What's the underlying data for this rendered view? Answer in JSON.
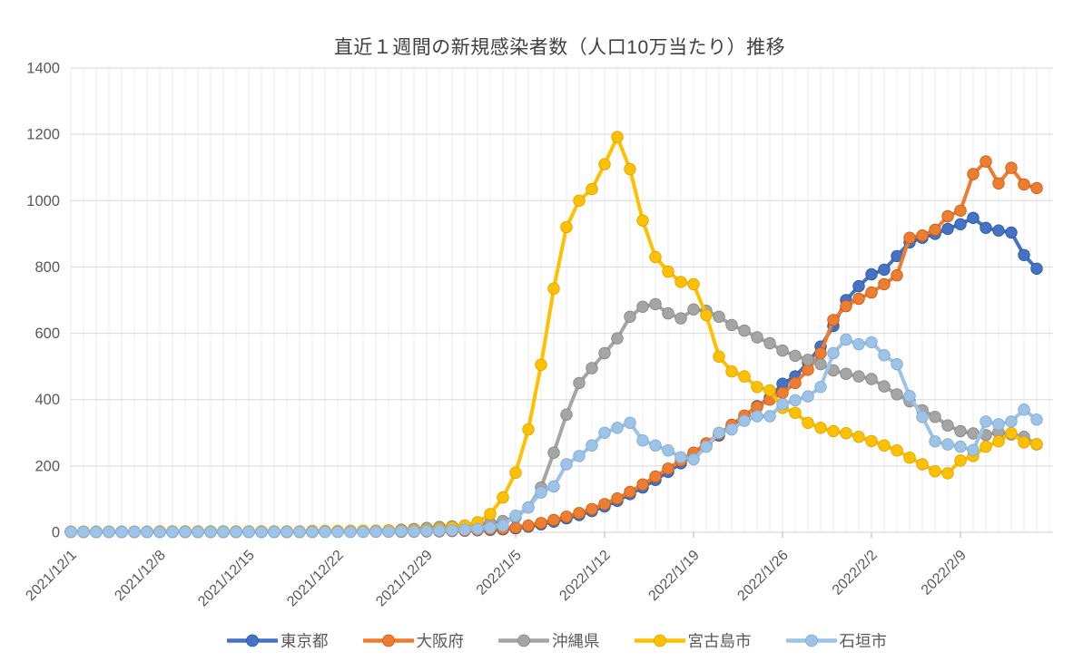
{
  "chart_data": {
    "type": "line",
    "title": "直近１週間の新規感染者数（人口10万当たり）推移",
    "legend_position": "bottom",
    "grid": "daily-vertical-and-horizontal",
    "ylim": [
      0,
      1400
    ],
    "y_ticks": [
      0,
      200,
      400,
      600,
      800,
      1000,
      1200,
      1400
    ],
    "x_start_date": "2021/12/1",
    "x_end_date": "2022/2/15",
    "n_points": 77,
    "x_tick_labels": [
      "2021/12/1",
      "2021/12/8",
      "2021/12/15",
      "2021/12/22",
      "2021/12/29",
      "2022/1/5",
      "2022/1/12",
      "2022/1/19",
      "2022/1/26",
      "2022/2/2",
      "2022/2/9"
    ],
    "x_tick_day_index": [
      0,
      7,
      14,
      21,
      28,
      35,
      42,
      49,
      56,
      63,
      70
    ],
    "series": [
      {
        "id": "tokyo",
        "name": "東京都",
        "color": "#4472C4",
        "marker_stroke": "#2F5597",
        "values": [
          1,
          1,
          1,
          1,
          1,
          1,
          1,
          1,
          1,
          1,
          1,
          1,
          1,
          1,
          1,
          1,
          1,
          1,
          1,
          2,
          2,
          2,
          2,
          2,
          2,
          2,
          2,
          3,
          3,
          3,
          4,
          5,
          6,
          7,
          9,
          12,
          17,
          24,
          32,
          42,
          52,
          64,
          78,
          95,
          115,
          135,
          158,
          182,
          208,
          235,
          263,
          292,
          320,
          350,
          380,
          405,
          448,
          470,
          512,
          560,
          622,
          700,
          742,
          778,
          792,
          833,
          874,
          888,
          900,
          915,
          929,
          948,
          918,
          910,
          904,
          836,
          795
        ]
      },
      {
        "id": "osaka",
        "name": "大阪府",
        "color": "#ED7D31",
        "marker_stroke": "#C55A11",
        "values": [
          1,
          1,
          1,
          1,
          1,
          1,
          1,
          1,
          1,
          1,
          1,
          1,
          1,
          1,
          1,
          1,
          1,
          1,
          1,
          1,
          2,
          2,
          2,
          2,
          2,
          2,
          2,
          2,
          3,
          3,
          4,
          5,
          7,
          9,
          11,
          14,
          20,
          28,
          37,
          47,
          58,
          70,
          85,
          102,
          122,
          144,
          168,
          192,
          216,
          240,
          268,
          296,
          324,
          352,
          378,
          400,
          420,
          450,
          490,
          540,
          640,
          682,
          704,
          723,
          748,
          775,
          888,
          895,
          912,
          953,
          970,
          1080,
          1118,
          1052,
          1099,
          1049,
          1038
        ]
      },
      {
        "id": "okinawa",
        "name": "沖縄県",
        "color": "#A5A5A5",
        "marker_stroke": "#848484",
        "values": [
          2,
          2,
          2,
          2,
          2,
          2,
          2,
          2,
          2,
          2,
          2,
          2,
          2,
          2,
          2,
          2,
          2,
          2,
          2,
          2,
          2,
          3,
          3,
          4,
          5,
          6,
          8,
          10,
          13,
          16,
          18,
          20,
          24,
          28,
          34,
          45,
          75,
          135,
          240,
          355,
          450,
          495,
          540,
          585,
          650,
          680,
          688,
          660,
          645,
          672,
          668,
          650,
          625,
          608,
          588,
          570,
          548,
          532,
          520,
          507,
          488,
          478,
          470,
          462,
          440,
          416,
          395,
          368,
          348,
          322,
          305,
          298,
          293,
          302,
          295,
          288,
          265
        ]
      },
      {
        "id": "miyakojima",
        "name": "宮古島市",
        "color": "#FFC000",
        "marker_stroke": "#D9A300",
        "values": [
          2,
          2,
          2,
          2,
          2,
          2,
          2,
          3,
          3,
          3,
          3,
          3,
          3,
          3,
          3,
          3,
          3,
          3,
          3,
          4,
          4,
          4,
          5,
          5,
          5,
          6,
          6,
          7,
          8,
          10,
          15,
          20,
          30,
          55,
          105,
          180,
          310,
          505,
          735,
          920,
          1000,
          1035,
          1110,
          1192,
          1095,
          940,
          830,
          786,
          755,
          748,
          655,
          530,
          485,
          470,
          438,
          428,
          375,
          360,
          330,
          315,
          305,
          299,
          288,
          275,
          262,
          247,
          225,
          205,
          184,
          178,
          216,
          230,
          258,
          274,
          299,
          271,
          266
        ]
      },
      {
        "id": "ishigaki",
        "name": "石垣市",
        "color": "#9DC3E6",
        "marker_stroke": "#7FA8D4",
        "values": [
          1,
          1,
          1,
          1,
          1,
          1,
          1,
          1,
          1,
          1,
          1,
          1,
          1,
          1,
          1,
          1,
          1,
          1,
          1,
          1,
          1,
          1,
          1,
          1,
          2,
          2,
          3,
          3,
          4,
          5,
          6,
          8,
          10,
          14,
          20,
          50,
          75,
          120,
          138,
          205,
          230,
          262,
          300,
          315,
          330,
          277,
          262,
          247,
          226,
          220,
          258,
          300,
          310,
          336,
          350,
          350,
          386,
          398,
          410,
          438,
          540,
          581,
          567,
          573,
          534,
          507,
          411,
          348,
          274,
          265,
          258,
          248,
          334,
          326,
          334,
          370,
          340
        ]
      }
    ],
    "style": {
      "plot_bg": "#FFFFFF",
      "v_gridline_color": "#ECECEC",
      "h_gridline_color": "#D9D9D9",
      "axis_line_color": "#D9D9D9",
      "tick_mark_color": "#BFBFBF",
      "axis_label_color": "#595959",
      "title_color": "#3F3F3F"
    }
  }
}
